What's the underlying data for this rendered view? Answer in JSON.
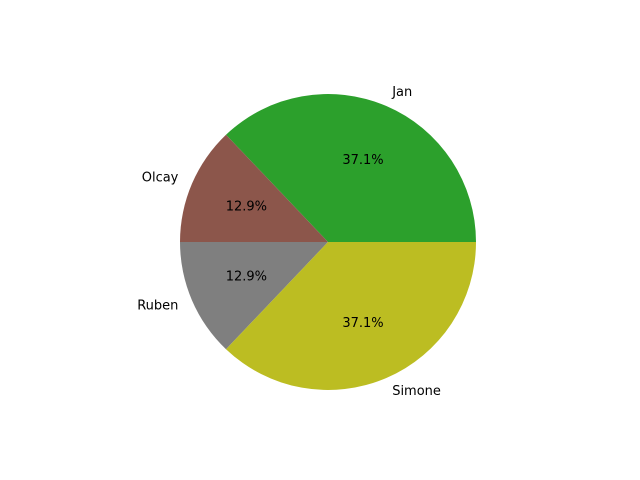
{
  "chart_data": {
    "type": "pie",
    "title": "",
    "start_angle_deg": 0,
    "direction": "counterclockwise",
    "slices": [
      {
        "label": "Jan",
        "value": 37.1,
        "pct_label": "37.1%",
        "color": "#2ca02c"
      },
      {
        "label": "Olcay",
        "value": 12.9,
        "pct_label": "12.9%",
        "color": "#8c564b"
      },
      {
        "label": "Ruben",
        "value": 12.9,
        "pct_label": "12.9%",
        "color": "#7f7f7f"
      },
      {
        "label": "Simone",
        "value": 37.1,
        "pct_label": "37.1%",
        "color": "#bcbd22"
      }
    ]
  }
}
